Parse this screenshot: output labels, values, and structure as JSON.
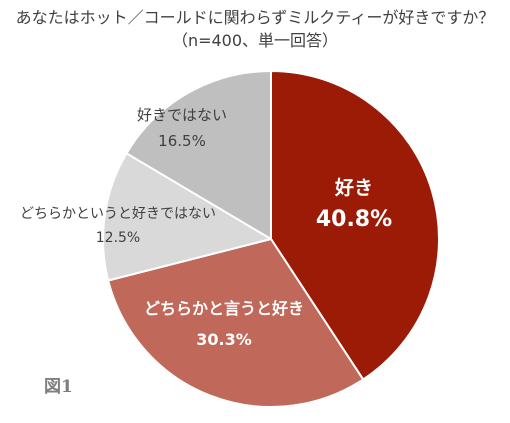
{
  "chart_data": {
    "type": "pie",
    "title": "あなたはホット／コールドに関わらずミルクティーが好きですか？",
    "subtitle": "（n=400、単一回答）",
    "unit": "%",
    "slices": [
      {
        "label": "好き",
        "value": 40.8,
        "color": "#9b1b06"
      },
      {
        "label": "どちらかと言うと好き",
        "value": 30.3,
        "color": "#c0685a"
      },
      {
        "label": "どちらかというと好きではない",
        "value": 12.5,
        "color": "#d9d9d9"
      },
      {
        "label": "好きではない",
        "value": 16.5,
        "color": "#bfbfbf"
      }
    ]
  },
  "figure_label": "図1"
}
